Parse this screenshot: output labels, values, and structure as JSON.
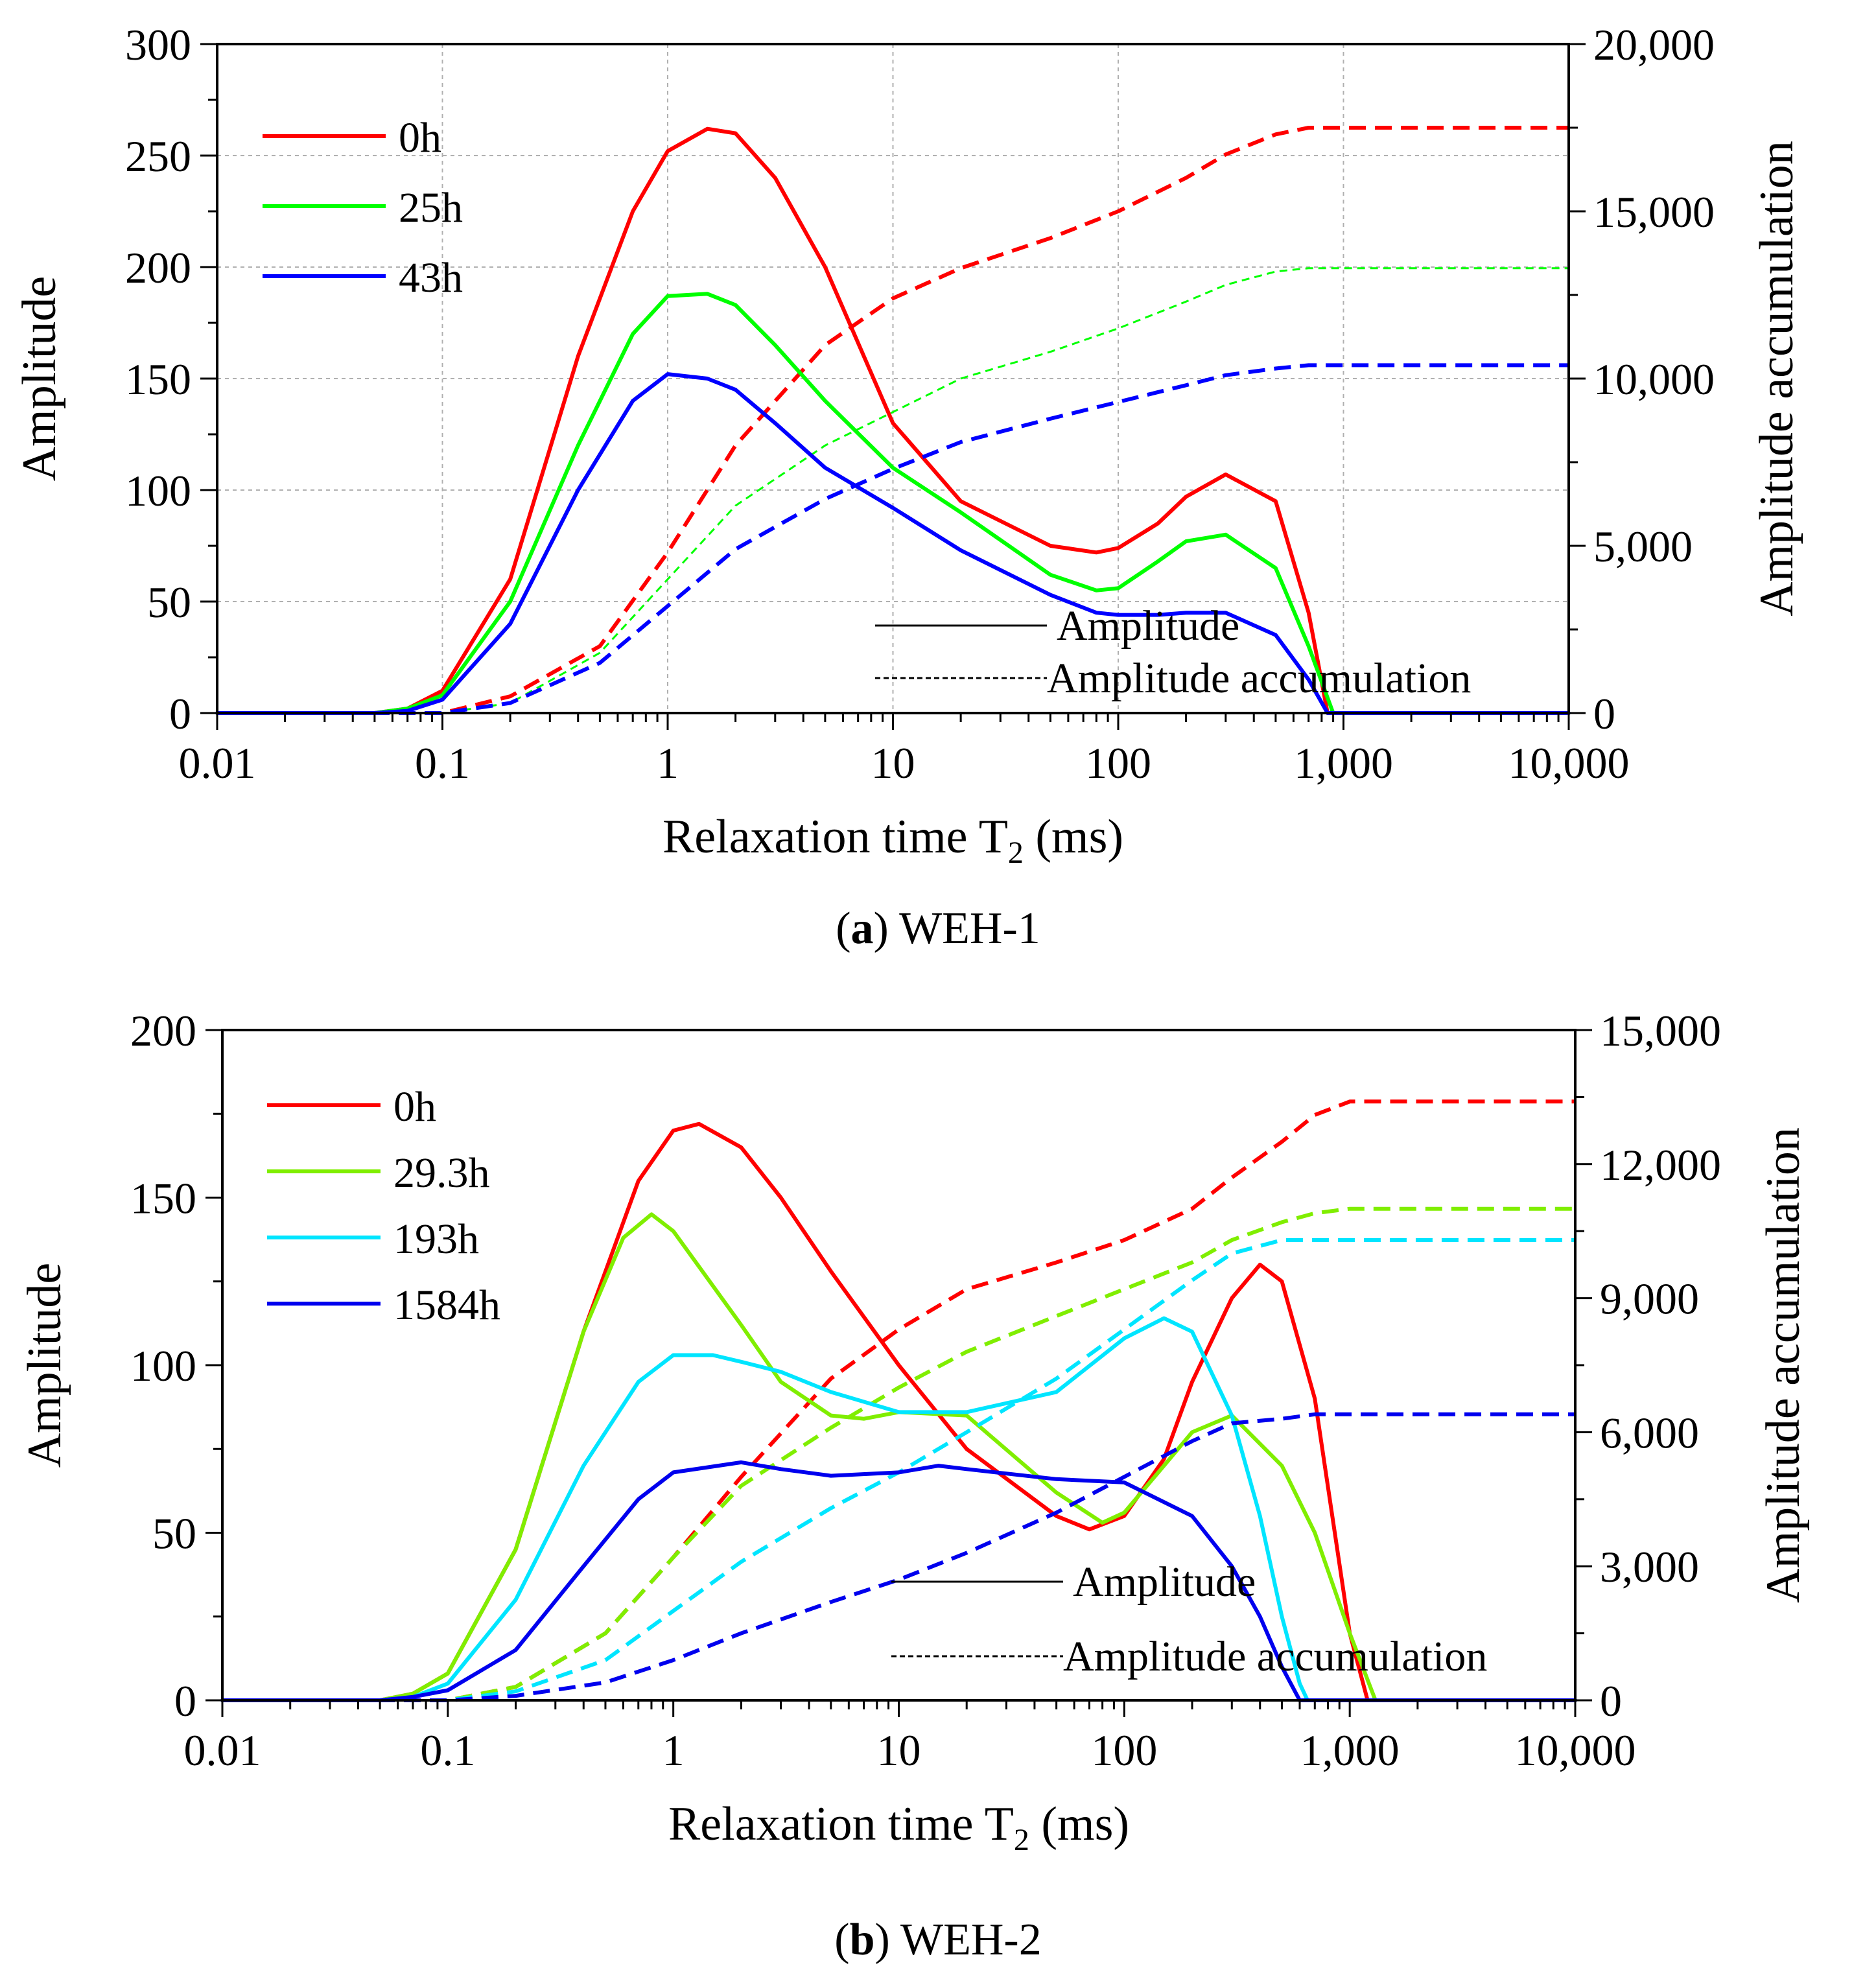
{
  "chart_data": [
    {
      "type": "line",
      "caption_letter": "a",
      "caption_rest": ") WEH-1",
      "caption_open": "(",
      "xlabel_main": "Relaxation time T",
      "xlabel_sub": "2",
      "xlabel_unit": " (ms)",
      "ylabel": "Amplitude",
      "y2label": "Amplitude accumulation",
      "xscale": "log",
      "xlim": [
        0.01,
        10000
      ],
      "ylim": [
        0,
        300
      ],
      "y2lim": [
        0,
        20000
      ],
      "xticks": [
        {
          "v": 0.01,
          "label": "0.01"
        },
        {
          "v": 0.1,
          "label": "0.1"
        },
        {
          "v": 1,
          "label": "1"
        },
        {
          "v": 10,
          "label": "10"
        },
        {
          "v": 100,
          "label": "100"
        },
        {
          "v": 1000,
          "label": "1,000"
        },
        {
          "v": 10000,
          "label": "10,000"
        }
      ],
      "yticks": [
        {
          "v": 0,
          "label": "0"
        },
        {
          "v": 50,
          "label": "50"
        },
        {
          "v": 100,
          "label": "100"
        },
        {
          "v": 150,
          "label": "150"
        },
        {
          "v": 200,
          "label": "200"
        },
        {
          "v": 250,
          "label": "250"
        },
        {
          "v": 300,
          "label": "300"
        }
      ],
      "y2ticks": [
        {
          "v": 0,
          "label": "0"
        },
        {
          "v": 5000,
          "label": "5,000"
        },
        {
          "v": 10000,
          "label": "10,000"
        },
        {
          "v": 15000,
          "label": "15,000"
        },
        {
          "v": 20000,
          "label": "20,000"
        }
      ],
      "grid": true,
      "legend_position": "top-left",
      "style_note_solid": "Amplitude",
      "style_note_dashed": "Amplitude accumulation",
      "series": [
        {
          "name": "0h",
          "color": "#ff0000",
          "amplitude": {
            "x": [
              0.01,
              0.05,
              0.07,
              0.1,
              0.2,
              0.4,
              0.7,
              1,
              1.5,
              2,
              3,
              5,
              10,
              20,
              50,
              80,
              100,
              150,
              200,
              300,
              500,
              700,
              850,
              1000,
              10000
            ],
            "y": [
              0,
              0,
              2,
              10,
              60,
              160,
              225,
              252,
              262,
              260,
              240,
              200,
              130,
              95,
              75,
              72,
              74,
              85,
              97,
              107,
              95,
              45,
              0,
              0,
              0
            ]
          },
          "accumulation": {
            "x": [
              0.01,
              0.1,
              0.2,
              0.5,
              1,
              2,
              5,
              10,
              20,
              50,
              100,
              200,
              300,
              500,
              700,
              1000,
              10000
            ],
            "y": [
              0,
              0,
              500,
              2000,
              4800,
              8000,
              11000,
              12400,
              13300,
              14200,
              15000,
              16000,
              16700,
              17300,
              17500,
              17500,
              17500
            ]
          }
        },
        {
          "name": "25h",
          "color": "#00ff00",
          "amplitude": {
            "x": [
              0.01,
              0.05,
              0.07,
              0.1,
              0.2,
              0.4,
              0.7,
              1,
              1.5,
              2,
              3,
              5,
              10,
              20,
              50,
              80,
              100,
              150,
              200,
              300,
              500,
              700,
              900,
              1000,
              10000
            ],
            "y": [
              0,
              0,
              2,
              8,
              50,
              120,
              170,
              187,
              188,
              183,
              165,
              140,
              110,
              90,
              62,
              55,
              56,
              68,
              77,
              80,
              65,
              30,
              0,
              0,
              0
            ]
          },
          "accumulation": {
            "x": [
              0.01,
              0.1,
              0.2,
              0.5,
              1,
              2,
              5,
              10,
              20,
              50,
              100,
              200,
              300,
              500,
              700,
              1000,
              10000
            ],
            "y": [
              0,
              0,
              300,
              1800,
              4000,
              6200,
              8000,
              9000,
              10000,
              10800,
              11500,
              12300,
              12800,
              13200,
              13300,
              13300,
              13300
            ]
          }
        },
        {
          "name": "43h",
          "color": "#0000ff",
          "amplitude": {
            "x": [
              0.01,
              0.05,
              0.07,
              0.1,
              0.2,
              0.4,
              0.7,
              1,
              1.5,
              2,
              3,
              5,
              10,
              20,
              50,
              80,
              100,
              150,
              200,
              300,
              500,
              700,
              850,
              1000,
              10000
            ],
            "y": [
              0,
              0,
              1,
              6,
              40,
              100,
              140,
              152,
              150,
              145,
              130,
              110,
              92,
              73,
              53,
              45,
              44,
              44,
              45,
              45,
              35,
              15,
              0,
              0,
              0
            ]
          },
          "accumulation": {
            "x": [
              0.01,
              0.1,
              0.2,
              0.5,
              1,
              2,
              5,
              10,
              20,
              50,
              100,
              200,
              300,
              500,
              700,
              1000,
              10000
            ],
            "y": [
              0,
              0,
              300,
              1500,
              3200,
              4900,
              6400,
              7300,
              8100,
              8800,
              9300,
              9800,
              10100,
              10300,
              10400,
              10400,
              10400
            ]
          }
        }
      ]
    },
    {
      "type": "line",
      "caption_letter": "b",
      "caption_rest": ") WEH-2",
      "caption_open": "(",
      "xlabel_main": "Relaxation time T",
      "xlabel_sub": "2",
      "xlabel_unit": " (ms)",
      "ylabel": "Amplitude",
      "y2label": "Amplitude accumulation",
      "xscale": "log",
      "xlim": [
        0.01,
        10000
      ],
      "ylim": [
        0,
        200
      ],
      "y2lim": [
        0,
        15000
      ],
      "xticks": [
        {
          "v": 0.01,
          "label": "0.01"
        },
        {
          "v": 0.1,
          "label": "0.1"
        },
        {
          "v": 1,
          "label": "1"
        },
        {
          "v": 10,
          "label": "10"
        },
        {
          "v": 100,
          "label": "100"
        },
        {
          "v": 1000,
          "label": "1,000"
        },
        {
          "v": 10000,
          "label": "10,000"
        }
      ],
      "yticks": [
        {
          "v": 0,
          "label": "0"
        },
        {
          "v": 50,
          "label": "50"
        },
        {
          "v": 100,
          "label": "100"
        },
        {
          "v": 150,
          "label": "150"
        },
        {
          "v": 200,
          "label": "200"
        }
      ],
      "y2ticks": [
        {
          "v": 0,
          "label": "0"
        },
        {
          "v": 3000,
          "label": "3,000"
        },
        {
          "v": 6000,
          "label": "6,000"
        },
        {
          "v": 9000,
          "label": "9,000"
        },
        {
          "v": 12000,
          "label": "12,000"
        },
        {
          "v": 15000,
          "label": "15,000"
        }
      ],
      "grid": false,
      "legend_position": "top-left",
      "style_note_solid": "Amplitude",
      "style_note_dashed": "Amplitude accumulation",
      "series": [
        {
          "name": "0h",
          "color": "#ff0000",
          "amplitude": {
            "x": [
              0.01,
              0.05,
              0.07,
              0.1,
              0.2,
              0.4,
              0.7,
              1,
              1.3,
              2,
              3,
              5,
              10,
              20,
              50,
              70,
              100,
              150,
              200,
              300,
              400,
              500,
              700,
              1000,
              1200,
              10000
            ],
            "y": [
              0,
              0,
              2,
              8,
              45,
              110,
              155,
              170,
              172,
              165,
              150,
              128,
              100,
              75,
              55,
              51,
              55,
              72,
              95,
              120,
              130,
              125,
              90,
              20,
              0,
              0
            ]
          },
          "accumulation": {
            "x": [
              0.01,
              0.1,
              0.2,
              0.5,
              1,
              2,
              5,
              10,
              20,
              50,
              100,
              200,
              300,
              500,
              700,
              1000,
              10000
            ],
            "y": [
              0,
              0,
              300,
              1500,
              3200,
              5000,
              7200,
              8300,
              9200,
              9800,
              10300,
              11000,
              11700,
              12500,
              13100,
              13400,
              13400
            ]
          }
        },
        {
          "name": "29.3h",
          "color": "#80ee00",
          "amplitude": {
            "x": [
              0.01,
              0.05,
              0.07,
              0.1,
              0.2,
              0.4,
              0.6,
              0.8,
              1,
              2,
              3,
              5,
              7,
              10,
              20,
              50,
              80,
              100,
              150,
              200,
              300,
              500,
              700,
              1000,
              1300,
              10000
            ],
            "y": [
              0,
              0,
              2,
              8,
              45,
              110,
              138,
              145,
              140,
              112,
              95,
              85,
              84,
              86,
              85,
              62,
              53,
              56,
              70,
              80,
              85,
              70,
              50,
              20,
              0,
              0
            ]
          },
          "accumulation": {
            "x": [
              0.01,
              0.1,
              0.2,
              0.5,
              1,
              2,
              5,
              10,
              20,
              50,
              100,
              200,
              300,
              500,
              700,
              1000,
              10000
            ],
            "y": [
              0,
              0,
              300,
              1500,
              3200,
              4800,
              6100,
              7000,
              7800,
              8600,
              9200,
              9800,
              10300,
              10700,
              10900,
              11000,
              11000
            ]
          }
        },
        {
          "name": "193h",
          "color": "#00e5ff",
          "amplitude": {
            "x": [
              0.01,
              0.05,
              0.07,
              0.1,
              0.2,
              0.4,
              0.7,
              1,
              1.5,
              2,
              3,
              5,
              10,
              20,
              50,
              100,
              150,
              200,
              300,
              400,
              500,
              600,
              650,
              10000
            ],
            "y": [
              0,
              0,
              1,
              5,
              30,
              70,
              95,
              103,
              103,
              101,
              98,
              92,
              86,
              86,
              92,
              108,
              114,
              110,
              85,
              55,
              25,
              5,
              0,
              0
            ]
          },
          "accumulation": {
            "x": [
              0.01,
              0.1,
              0.2,
              0.5,
              1,
              2,
              5,
              10,
              20,
              50,
              100,
              200,
              300,
              500,
              700,
              1000,
              10000
            ],
            "y": [
              0,
              0,
              200,
              900,
              2000,
              3100,
              4300,
              5100,
              6000,
              7200,
              8300,
              9400,
              10000,
              10300,
              10300,
              10300,
              10300
            ]
          }
        },
        {
          "name": "1584h",
          "color": "#0000ee",
          "amplitude": {
            "x": [
              0.01,
              0.05,
              0.07,
              0.1,
              0.2,
              0.4,
              0.7,
              1,
              2,
              3,
              5,
              10,
              15,
              20,
              50,
              100,
              200,
              300,
              400,
              500,
              600,
              10000
            ],
            "y": [
              0,
              0,
              1,
              3,
              15,
              40,
              60,
              68,
              71,
              69,
              67,
              68,
              70,
              69,
              66,
              65,
              55,
              40,
              25,
              10,
              0,
              0
            ]
          },
          "accumulation": {
            "x": [
              0.01,
              0.1,
              0.2,
              0.5,
              1,
              2,
              5,
              10,
              20,
              50,
              100,
              200,
              300,
              500,
              700,
              1000,
              10000
            ],
            "y": [
              0,
              0,
              100,
              400,
              900,
              1500,
              2200,
              2700,
              3300,
              4200,
              5000,
              5800,
              6200,
              6300,
              6400,
              6400,
              6400
            ]
          }
        }
      ]
    }
  ]
}
